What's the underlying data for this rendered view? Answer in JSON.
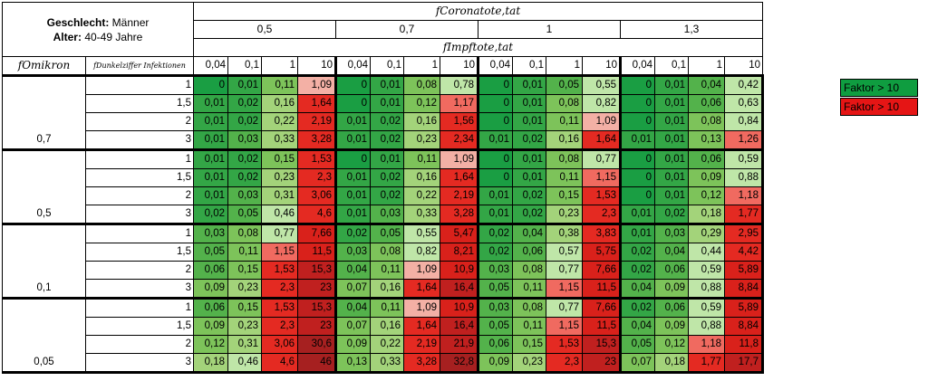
{
  "header": {
    "sex_label": "Geschlecht:",
    "sex_value": "Männer",
    "age_label": "Alter:",
    "age_value": "40-49 Jahre",
    "f_corona": "fCoronatote,tat",
    "f_impf": "fImpftote,tat",
    "f_omikron": "fOmikron",
    "f_dunkel": "fDunkelziffer Infektionen",
    "corona_values": [
      "0,5",
      "0,7",
      "1",
      "1,3"
    ],
    "impf_values": [
      "0,04",
      "0,1",
      "1",
      "10"
    ]
  },
  "colors": {
    "green": "#0f9d40",
    "red": "#e51515",
    "gradient": [
      "#1a9e43",
      "#33a646",
      "#53b24b",
      "#7dc35a",
      "#a3d37a",
      "#bfe6a8",
      "#f3b0a5",
      "#f06a60",
      "#e42a22",
      "#d9211b",
      "#c0201f",
      "#a62020"
    ]
  },
  "legend": {
    "green_label": "Faktor > 10",
    "red_label": "Faktor > 10"
  },
  "table": {
    "groups": [
      {
        "omikron": "0,7",
        "rows": [
          {
            "d": "1",
            "v": [
              "0",
              "0,01",
              "0,11",
              "1,09",
              "0",
              "0,01",
              "0,08",
              "0,78",
              "0",
              "0,01",
              "0,05",
              "0,55",
              "0",
              "0,01",
              "0,04",
              "0,42"
            ]
          },
          {
            "d": "1,5",
            "v": [
              "0,01",
              "0,02",
              "0,16",
              "1,64",
              "0",
              "0,01",
              "0,12",
              "1,17",
              "0",
              "0,01",
              "0,08",
              "0,82",
              "0",
              "0,01",
              "0,06",
              "0,63"
            ]
          },
          {
            "d": "2",
            "v": [
              "0,01",
              "0,02",
              "0,22",
              "2,19",
              "0,01",
              "0,02",
              "0,16",
              "1,56",
              "0",
              "0,01",
              "0,11",
              "1,09",
              "0",
              "0,01",
              "0,08",
              "0,84"
            ]
          },
          {
            "d": "3",
            "v": [
              "0,01",
              "0,03",
              "0,33",
              "3,28",
              "0,01",
              "0,02",
              "0,23",
              "2,34",
              "0,01",
              "0,02",
              "0,16",
              "1,64",
              "0,01",
              "0,01",
              "0,13",
              "1,26"
            ]
          }
        ]
      },
      {
        "omikron": "0,5",
        "rows": [
          {
            "d": "1",
            "v": [
              "0,01",
              "0,02",
              "0,15",
              "1,53",
              "0",
              "0,01",
              "0,11",
              "1,09",
              "0",
              "0,01",
              "0,08",
              "0,77",
              "0",
              "0,01",
              "0,06",
              "0,59"
            ]
          },
          {
            "d": "1,5",
            "v": [
              "0,01",
              "0,02",
              "0,23",
              "2,3",
              "0,01",
              "0,02",
              "0,16",
              "1,64",
              "0",
              "0,01",
              "0,11",
              "1,15",
              "0",
              "0,01",
              "0,09",
              "0,88"
            ]
          },
          {
            "d": "2",
            "v": [
              "0,01",
              "0,03",
              "0,31",
              "3,06",
              "0,01",
              "0,02",
              "0,22",
              "2,19",
              "0,01",
              "0,02",
              "0,15",
              "1,53",
              "0",
              "0,01",
              "0,12",
              "1,18"
            ]
          },
          {
            "d": "3",
            "v": [
              "0,02",
              "0,05",
              "0,46",
              "4,6",
              "0,01",
              "0,03",
              "0,33",
              "3,28",
              "0,01",
              "0,02",
              "0,23",
              "2,3",
              "0,01",
              "0,02",
              "0,18",
              "1,77"
            ]
          }
        ]
      },
      {
        "omikron": "0,1",
        "rows": [
          {
            "d": "1",
            "v": [
              "0,03",
              "0,08",
              "0,77",
              "7,66",
              "0,02",
              "0,05",
              "0,55",
              "5,47",
              "0,02",
              "0,04",
              "0,38",
              "3,83",
              "0,01",
              "0,03",
              "0,29",
              "2,95"
            ]
          },
          {
            "d": "1,5",
            "v": [
              "0,05",
              "0,11",
              "1,15",
              "11,5",
              "0,03",
              "0,08",
              "0,82",
              "8,21",
              "0,02",
              "0,06",
              "0,57",
              "5,75",
              "0,02",
              "0,04",
              "0,44",
              "4,42"
            ]
          },
          {
            "d": "2",
            "v": [
              "0,06",
              "0,15",
              "1,53",
              "15,3",
              "0,04",
              "0,11",
              "1,09",
              "10,9",
              "0,03",
              "0,08",
              "0,77",
              "7,66",
              "0,02",
              "0,06",
              "0,59",
              "5,89"
            ]
          },
          {
            "d": "3",
            "v": [
              "0,09",
              "0,23",
              "2,3",
              "23",
              "0,07",
              "0,16",
              "1,64",
              "16,4",
              "0,05",
              "0,11",
              "1,15",
              "11,5",
              "0,04",
              "0,09",
              "0,88",
              "8,84"
            ]
          }
        ]
      },
      {
        "omikron": "0,05",
        "rows": [
          {
            "d": "1",
            "v": [
              "0,06",
              "0,15",
              "1,53",
              "15,3",
              "0,04",
              "0,11",
              "1,09",
              "10,9",
              "0,03",
              "0,08",
              "0,77",
              "7,66",
              "0,02",
              "0,06",
              "0,59",
              "5,89"
            ]
          },
          {
            "d": "1,5",
            "v": [
              "0,09",
              "0,23",
              "2,3",
              "23",
              "0,07",
              "0,16",
              "1,64",
              "16,4",
              "0,05",
              "0,11",
              "1,15",
              "11,5",
              "0,04",
              "0,09",
              "0,88",
              "8,84"
            ]
          },
          {
            "d": "2",
            "v": [
              "0,12",
              "0,31",
              "3,06",
              "30,6",
              "0,09",
              "0,22",
              "2,19",
              "21,9",
              "0,06",
              "0,15",
              "1,53",
              "15,3",
              "0,05",
              "0,12",
              "1,18",
              "11,8"
            ]
          },
          {
            "d": "3",
            "v": [
              "0,18",
              "0,46",
              "4,6",
              "46",
              "0,13",
              "0,33",
              "3,28",
              "32,8",
              "0,09",
              "0,23",
              "2,3",
              "23",
              "0,07",
              "0,18",
              "1,77",
              "17,7"
            ]
          }
        ]
      }
    ]
  }
}
